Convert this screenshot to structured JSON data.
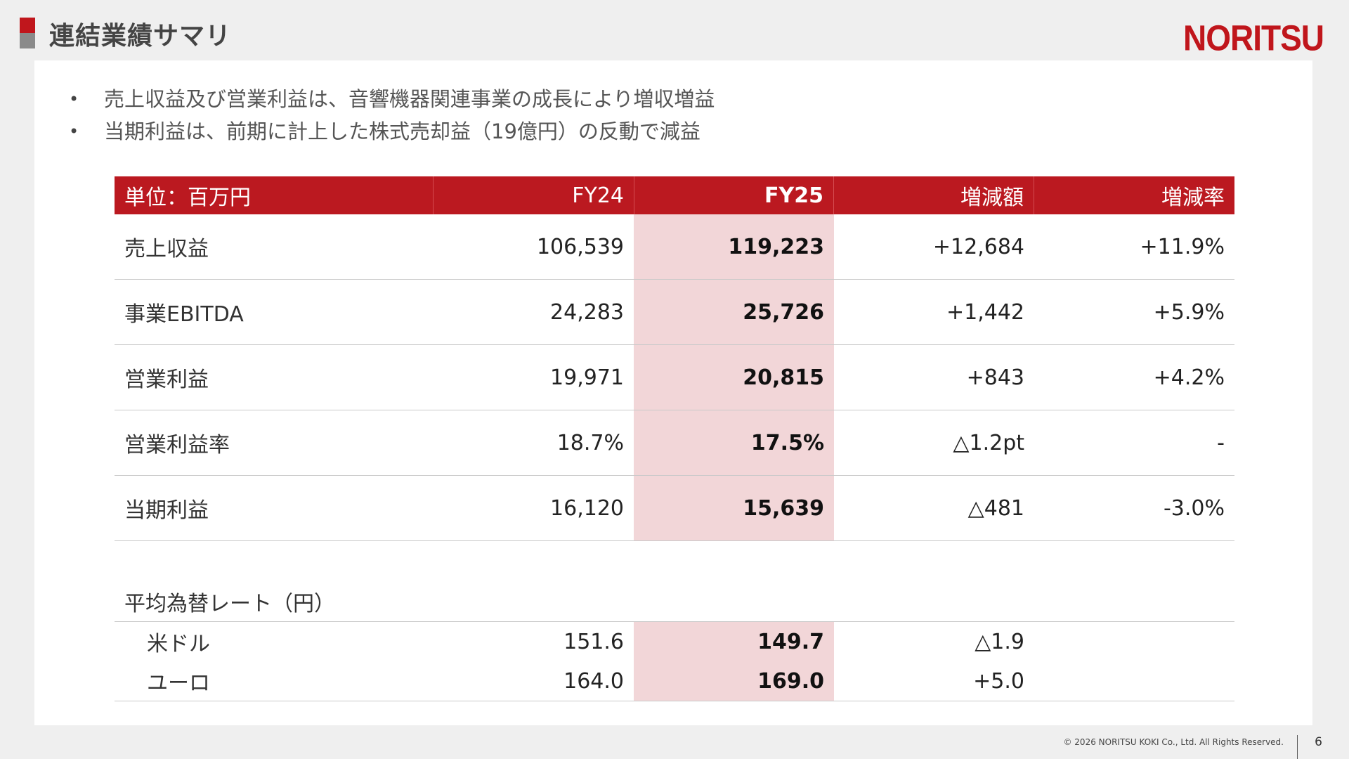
{
  "header": {
    "title": "連結業績サマリ",
    "logo_text": "NORITSU",
    "accent_color": "#c0161c"
  },
  "bullets": [
    "売上収益及び営業利益は、音響機器関連事業の成長により増収増益",
    "当期利益は、前期に計上した株式売却益（19億円）の反動で減益"
  ],
  "table": {
    "columns": [
      "単位：百万円",
      "FY24",
      "FY25",
      "増減額",
      "増減率"
    ],
    "rows": [
      {
        "label": "売上収益",
        "fy24": "106,539",
        "fy25": "119,223",
        "diff": "+12,684",
        "rate": "+11.9%"
      },
      {
        "label": "事業EBITDA",
        "fy24": "24,283",
        "fy25": "25,726",
        "diff": "+1,442",
        "rate": "+5.9%"
      },
      {
        "label": "営業利益",
        "fy24": "19,971",
        "fy25": "20,815",
        "diff": "+843",
        "rate": "+4.2%"
      },
      {
        "label": "営業利益率",
        "fy24": "18.7%",
        "fy25": "17.5%",
        "diff": "△1.2pt",
        "rate": "-"
      },
      {
        "label": "当期利益",
        "fy24": "16,120",
        "fy25": "15,639",
        "diff": "△481",
        "rate": "-3.0%"
      }
    ],
    "highlight_color": "#f2d6d8"
  },
  "fx": {
    "title": "平均為替レート（円）",
    "rows": [
      {
        "label": "米ドル",
        "fy24": "151.6",
        "fy25": "149.7",
        "diff": "△1.9"
      },
      {
        "label": "ユーロ",
        "fy24": "164.0",
        "fy25": "169.0",
        "diff": "+5.0"
      }
    ]
  },
  "footer": {
    "copyright": "© 2026 NORITSU KOKI Co., Ltd. All Rights Reserved.",
    "page": "6"
  }
}
